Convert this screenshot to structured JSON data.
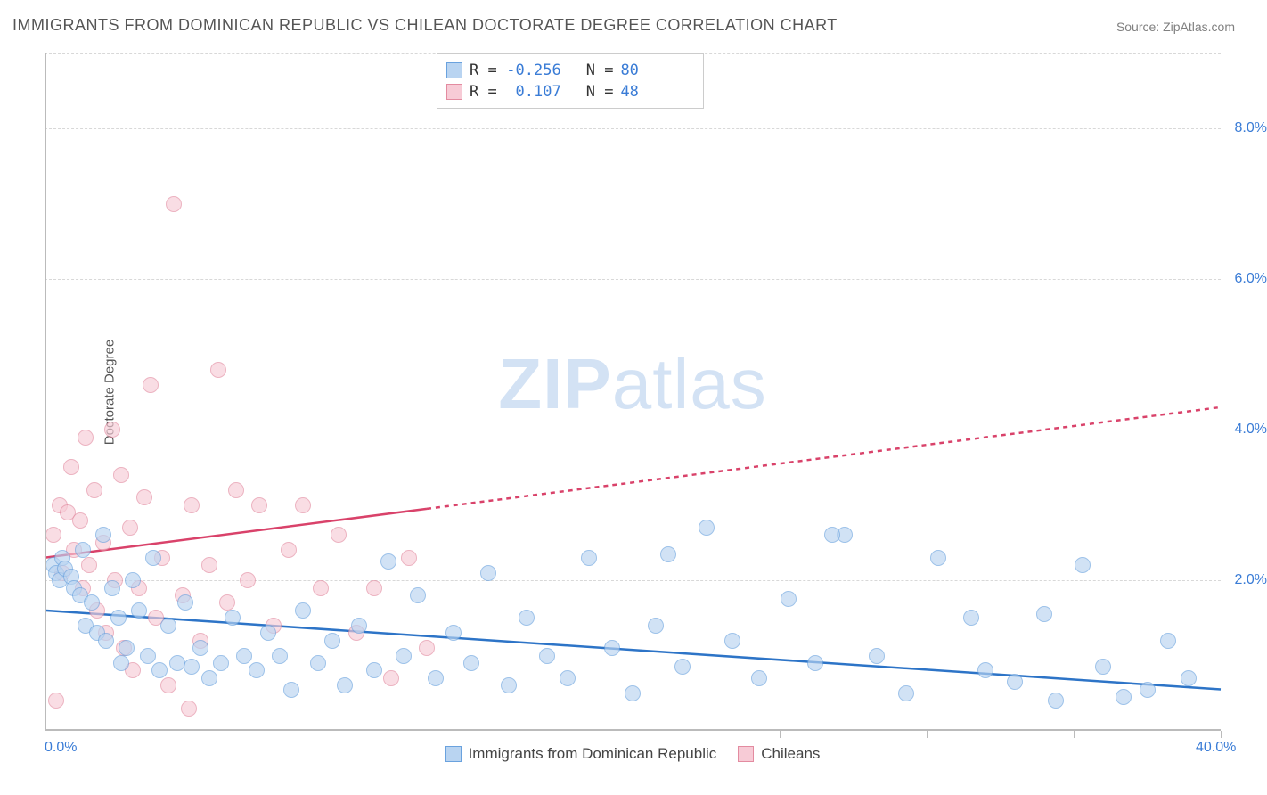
{
  "title": "IMMIGRANTS FROM DOMINICAN REPUBLIC VS CHILEAN DOCTORATE DEGREE CORRELATION CHART",
  "source_label": "Source: ZipAtlas.com",
  "ylabel": "Doctorate Degree",
  "watermark": {
    "bold": "ZIP",
    "rest": "atlas"
  },
  "chart": {
    "type": "scatter",
    "xlim": [
      0,
      40
    ],
    "ylim": [
      0,
      9
    ],
    "xtick_positions": [
      0,
      5,
      10,
      15,
      20,
      25,
      30,
      35,
      40
    ],
    "xtick_labels": {
      "0": "0.0%",
      "40": "40.0%"
    },
    "ytick_positions": [
      2,
      4,
      6,
      8
    ],
    "ytick_labels": {
      "2": "2.0%",
      "4": "4.0%",
      "6": "6.0%",
      "8": "8.0%"
    },
    "grid_y": [
      2,
      4,
      6,
      8,
      9
    ],
    "grid_color": "#d8d8d8",
    "axis_color": "#bbbbbb",
    "background_color": "#ffffff",
    "tick_label_color": "#3a7cd6",
    "label_fontsize": 15,
    "marker_radius": 9
  },
  "series": {
    "dominican": {
      "label": "Immigrants from Dominican Republic",
      "fill": "#b9d4f1",
      "stroke": "#6aa2de",
      "R": "-0.256",
      "N": "80",
      "trend": {
        "x1": 0,
        "y1": 1.6,
        "x2": 40,
        "y2": 0.55,
        "color": "#2d74c7",
        "solid_until": 40
      },
      "points": [
        [
          0.3,
          2.2
        ],
        [
          0.4,
          2.1
        ],
        [
          0.6,
          2.3
        ],
        [
          0.5,
          2.0
        ],
        [
          0.7,
          2.15
        ],
        [
          0.9,
          2.05
        ],
        [
          1.0,
          1.9
        ],
        [
          1.2,
          1.8
        ],
        [
          1.3,
          2.4
        ],
        [
          1.4,
          1.4
        ],
        [
          1.6,
          1.7
        ],
        [
          1.8,
          1.3
        ],
        [
          2.0,
          2.6
        ],
        [
          2.1,
          1.2
        ],
        [
          2.3,
          1.9
        ],
        [
          2.5,
          1.5
        ],
        [
          2.6,
          0.9
        ],
        [
          2.8,
          1.1
        ],
        [
          3.0,
          2.0
        ],
        [
          3.2,
          1.6
        ],
        [
          3.5,
          1.0
        ],
        [
          3.7,
          2.3
        ],
        [
          3.9,
          0.8
        ],
        [
          4.2,
          1.4
        ],
        [
          4.5,
          0.9
        ],
        [
          4.8,
          1.7
        ],
        [
          5.0,
          0.85
        ],
        [
          5.3,
          1.1
        ],
        [
          5.6,
          0.7
        ],
        [
          6.0,
          0.9
        ],
        [
          6.4,
          1.5
        ],
        [
          6.8,
          1.0
        ],
        [
          7.2,
          0.8
        ],
        [
          7.6,
          1.3
        ],
        [
          8.0,
          1.0
        ],
        [
          8.4,
          0.55
        ],
        [
          8.8,
          1.6
        ],
        [
          9.3,
          0.9
        ],
        [
          9.8,
          1.2
        ],
        [
          10.2,
          0.6
        ],
        [
          10.7,
          1.4
        ],
        [
          11.2,
          0.8
        ],
        [
          11.7,
          2.25
        ],
        [
          12.2,
          1.0
        ],
        [
          12.7,
          1.8
        ],
        [
          13.3,
          0.7
        ],
        [
          13.9,
          1.3
        ],
        [
          14.5,
          0.9
        ],
        [
          15.1,
          2.1
        ],
        [
          15.8,
          0.6
        ],
        [
          16.4,
          1.5
        ],
        [
          17.1,
          1.0
        ],
        [
          17.8,
          0.7
        ],
        [
          18.5,
          2.3
        ],
        [
          19.3,
          1.1
        ],
        [
          20.0,
          0.5
        ],
        [
          20.8,
          1.4
        ],
        [
          21.7,
          0.85
        ],
        [
          22.5,
          2.7
        ],
        [
          23.4,
          1.2
        ],
        [
          24.3,
          0.7
        ],
        [
          25.3,
          1.75
        ],
        [
          26.2,
          0.9
        ],
        [
          27.2,
          2.6
        ],
        [
          28.3,
          1.0
        ],
        [
          29.3,
          0.5
        ],
        [
          30.4,
          2.3
        ],
        [
          31.5,
          1.5
        ],
        [
          32.0,
          0.8
        ],
        [
          33.0,
          0.65
        ],
        [
          34.0,
          1.55
        ],
        [
          34.4,
          0.4
        ],
        [
          35.3,
          2.2
        ],
        [
          36.0,
          0.85
        ],
        [
          36.7,
          0.45
        ],
        [
          37.5,
          0.55
        ],
        [
          38.2,
          1.2
        ],
        [
          38.9,
          0.7
        ],
        [
          26.8,
          2.6
        ],
        [
          21.2,
          2.35
        ]
      ]
    },
    "chilean": {
      "label": "Chileans",
      "fill": "#f7cbd6",
      "stroke": "#e38ba0",
      "R": "0.107",
      "N": "48",
      "trend": {
        "x1": 0,
        "y1": 2.3,
        "x2": 40,
        "y2": 4.3,
        "color": "#d9426a",
        "solid_until": 13
      },
      "points": [
        [
          0.3,
          2.6
        ],
        [
          0.5,
          3.0
        ],
        [
          0.6,
          2.1
        ],
        [
          0.8,
          2.9
        ],
        [
          0.9,
          3.5
        ],
        [
          1.0,
          2.4
        ],
        [
          1.2,
          2.8
        ],
        [
          1.3,
          1.9
        ],
        [
          1.4,
          3.9
        ],
        [
          1.5,
          2.2
        ],
        [
          1.7,
          3.2
        ],
        [
          1.8,
          1.6
        ],
        [
          2.0,
          2.5
        ],
        [
          2.1,
          1.3
        ],
        [
          2.3,
          4.0
        ],
        [
          2.4,
          2.0
        ],
        [
          2.6,
          3.4
        ],
        [
          2.7,
          1.1
        ],
        [
          2.9,
          2.7
        ],
        [
          3.0,
          0.8
        ],
        [
          3.2,
          1.9
        ],
        [
          3.4,
          3.1
        ],
        [
          3.6,
          4.6
        ],
        [
          3.8,
          1.5
        ],
        [
          4.0,
          2.3
        ],
        [
          4.2,
          0.6
        ],
        [
          4.4,
          7.0
        ],
        [
          4.7,
          1.8
        ],
        [
          5.0,
          3.0
        ],
        [
          5.3,
          1.2
        ],
        [
          5.6,
          2.2
        ],
        [
          5.9,
          4.8
        ],
        [
          6.2,
          1.7
        ],
        [
          6.5,
          3.2
        ],
        [
          6.9,
          2.0
        ],
        [
          7.3,
          3.0
        ],
        [
          7.8,
          1.4
        ],
        [
          8.3,
          2.4
        ],
        [
          8.8,
          3.0
        ],
        [
          9.4,
          1.9
        ],
        [
          10.0,
          2.6
        ],
        [
          10.6,
          1.3
        ],
        [
          11.2,
          1.9
        ],
        [
          11.8,
          0.7
        ],
        [
          12.4,
          2.3
        ],
        [
          13.0,
          1.1
        ],
        [
          0.4,
          0.4
        ],
        [
          4.9,
          0.3
        ]
      ]
    }
  },
  "legend_top": {
    "rows": [
      {
        "swatch": "dominican",
        "r_label": "R =",
        "r_val": "-0.256",
        "n_label": "N =",
        "n_val": "80"
      },
      {
        "swatch": "chilean",
        "r_label": "R =",
        "r_val": " 0.107",
        "n_label": "N =",
        "n_val": "48"
      }
    ]
  },
  "legend_bottom": [
    {
      "swatch": "dominican",
      "label": "Immigrants from Dominican Republic"
    },
    {
      "swatch": "chilean",
      "label": "Chileans"
    }
  ]
}
